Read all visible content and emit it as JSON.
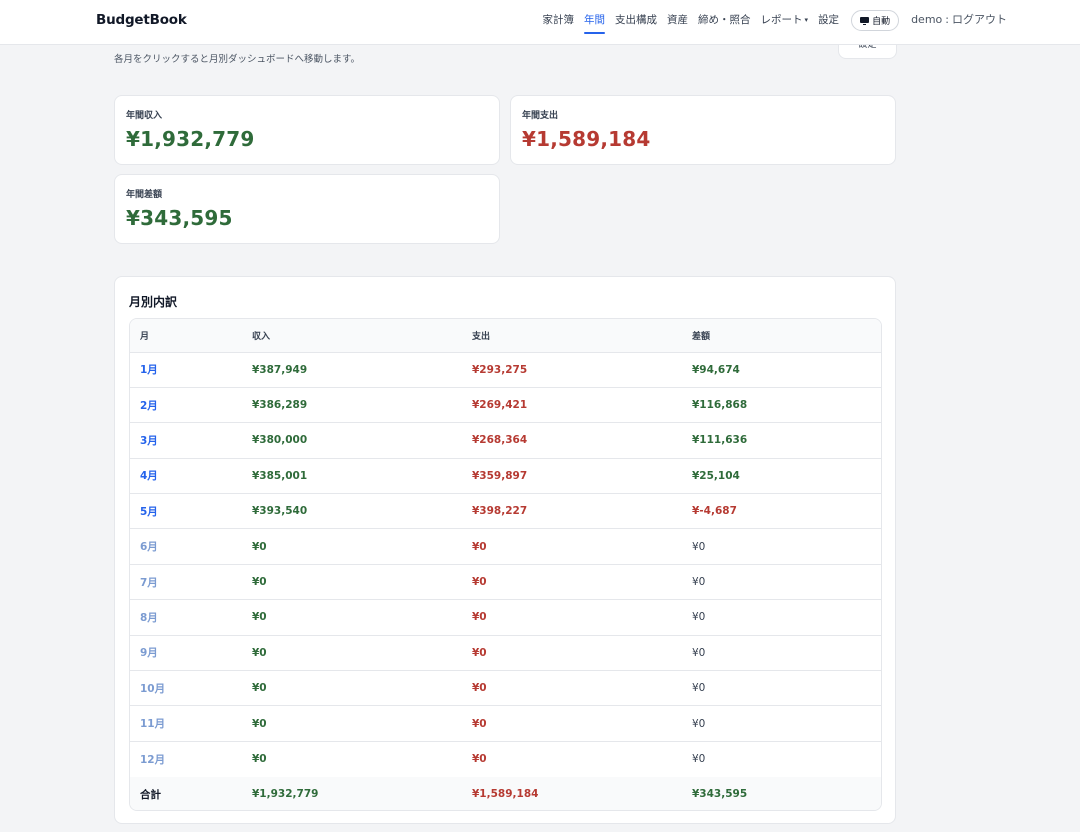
{
  "header": {
    "brand": "BudgetBook",
    "nav": [
      "家計簿",
      "年間",
      "支出構成",
      "資産",
      "締め・照合",
      "レポート",
      "設定"
    ],
    "report_caret": "▾",
    "auto_label": "自動",
    "user": "demo",
    "separator": ":",
    "logout": "ログアウト"
  },
  "subtitle": "各月をクリックすると月別ダッシュボードへ移動します。",
  "clipped_button_label": "設定",
  "stats": {
    "income": {
      "label": "年間収入",
      "value": "¥1,932,779"
    },
    "expense": {
      "label": "年間支出",
      "value": "¥1,589,184"
    },
    "net": {
      "label": "年間差額",
      "value": "¥343,595"
    }
  },
  "monthly": {
    "title": "月別内訳",
    "headers": [
      "月",
      "収入",
      "支出",
      "差額"
    ],
    "rows": [
      {
        "month": "1月",
        "income": "¥387,949",
        "expense": "¥293,275",
        "diff": "¥94,674"
      },
      {
        "month": "2月",
        "income": "¥386,289",
        "expense": "¥269,421",
        "diff": "¥116,868"
      },
      {
        "month": "3月",
        "income": "¥380,000",
        "expense": "¥268,364",
        "diff": "¥111,636"
      },
      {
        "month": "4月",
        "income": "¥385,001",
        "expense": "¥359,897",
        "diff": "¥25,104"
      },
      {
        "month": "5月",
        "income": "¥393,540",
        "expense": "¥398,227",
        "diff": "¥-4,687"
      },
      {
        "month": "6月",
        "income": "¥0",
        "expense": "¥0",
        "diff": "¥0"
      },
      {
        "month": "7月",
        "income": "¥0",
        "expense": "¥0",
        "diff": "¥0"
      },
      {
        "month": "8月",
        "income": "¥0",
        "expense": "¥0",
        "diff": "¥0"
      },
      {
        "month": "9月",
        "income": "¥0",
        "expense": "¥0",
        "diff": "¥0"
      },
      {
        "month": "10月",
        "income": "¥0",
        "expense": "¥0",
        "diff": "¥0"
      },
      {
        "month": "11月",
        "income": "¥0",
        "expense": "¥0",
        "diff": "¥0"
      },
      {
        "month": "12月",
        "income": "¥0",
        "expense": "¥0",
        "diff": "¥0"
      }
    ],
    "total": {
      "label": "合計",
      "income": "¥1,932,779",
      "expense": "¥1,589,184",
      "diff": "¥343,595"
    }
  },
  "colors": {
    "positive": "#2f6b3a",
    "negative": "#b63a32",
    "link": "#2563eb",
    "link_future": "#7b9bd1"
  }
}
